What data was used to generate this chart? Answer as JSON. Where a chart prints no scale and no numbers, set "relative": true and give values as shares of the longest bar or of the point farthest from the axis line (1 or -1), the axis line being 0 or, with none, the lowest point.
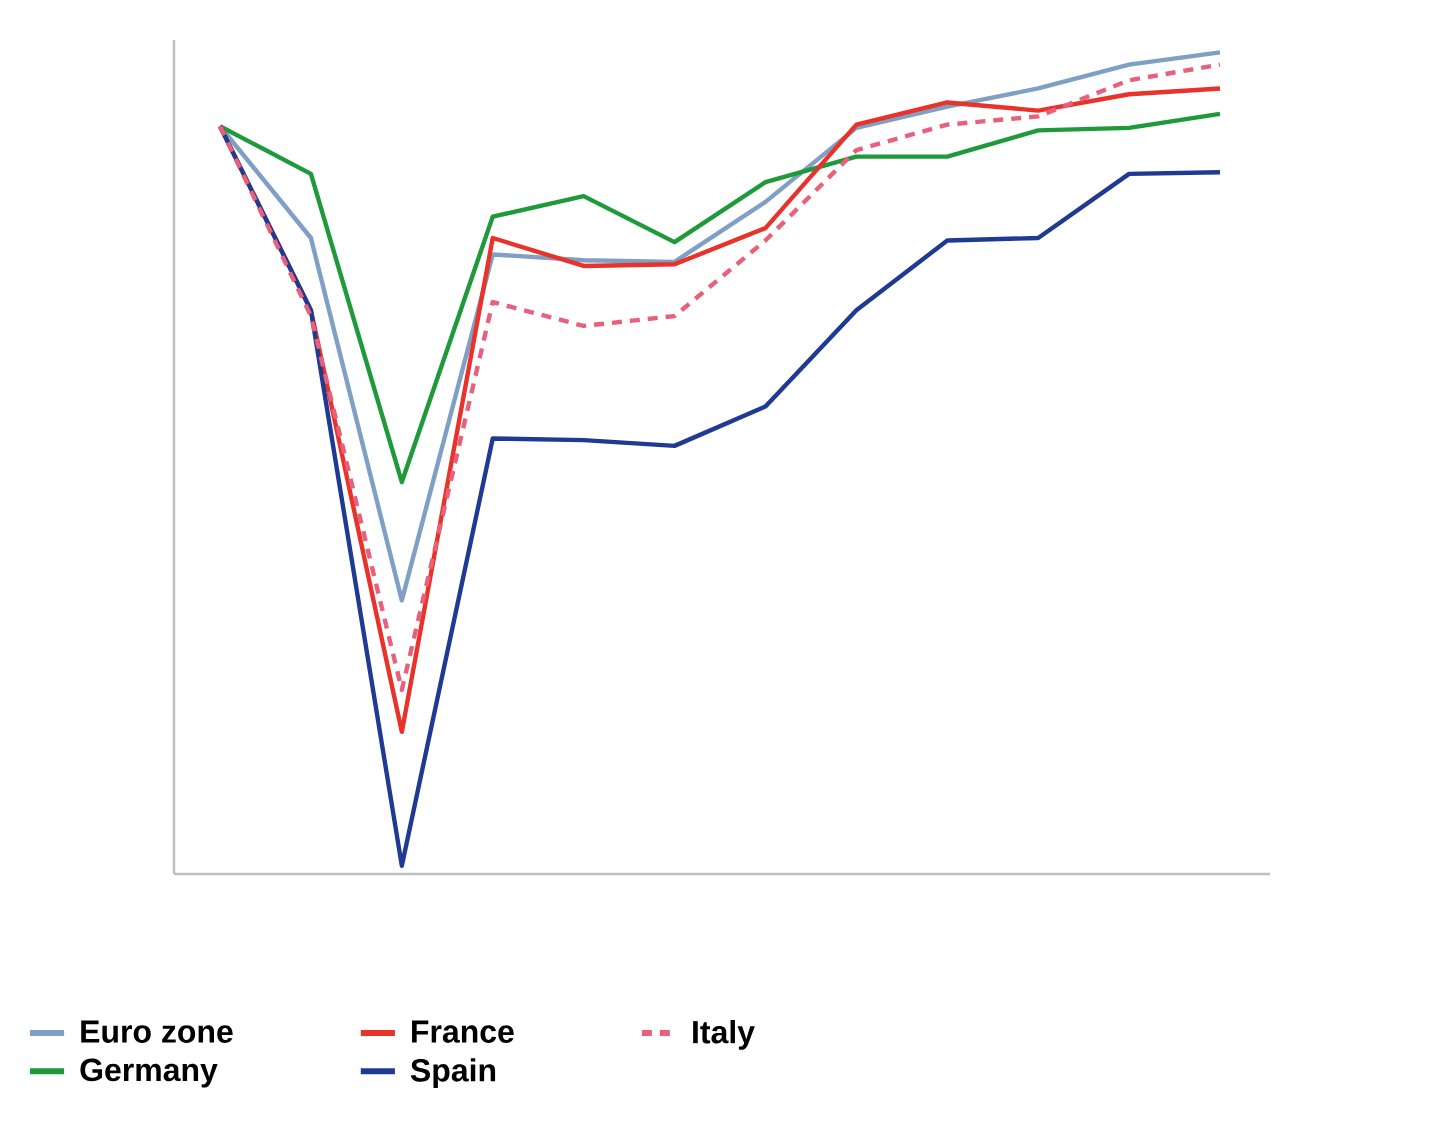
{
  "chart_data": {
    "type": "line",
    "relative": true,
    "legend": "bottom",
    "marker": "none",
    "categories": [
      null,
      null,
      null,
      null,
      null,
      null,
      null,
      null,
      null,
      null,
      null,
      null
    ],
    "series": [
      {
        "name": "Euro zone",
        "color": "#7f9fc4",
        "line_style": "solid",
        "values": [
          0.91,
          0.774,
          0.333,
          0.754,
          0.747,
          0.745,
          0.818,
          0.908,
          0.934,
          0.956,
          0.985,
          1
        ]
      },
      {
        "name": "Germany",
        "color": "#1f9a3a",
        "line_style": "solid",
        "values": [
          0.91,
          0.852,
          0.477,
          0.8,
          0.825,
          0.769,
          0.842,
          0.873,
          0.873,
          0.905,
          0.908,
          0.925
        ]
      },
      {
        "name": "France",
        "color": "#e8322a",
        "line_style": "solid",
        "values": [
          0.91,
          0.686,
          0.173,
          0.774,
          0.74,
          0.742,
          0.786,
          0.912,
          0.939,
          0.929,
          0.949,
          0.956
        ]
      },
      {
        "name": "Spain",
        "color": "#1f3a93",
        "line_style": "solid",
        "values": [
          0.91,
          0.686,
          0.01,
          0.53,
          0.528,
          0.521,
          0.569,
          0.686,
          0.771,
          0.774,
          0.852,
          0.854
        ]
      },
      {
        "name": "Italy",
        "color": "#e8607a",
        "line_style": "dashed",
        "values": [
          0.91,
          0.679,
          0.224,
          0.696,
          0.667,
          0.679,
          0.771,
          0.881,
          0.912,
          0.922,
          0.966,
          0.985
        ]
      }
    ]
  }
}
